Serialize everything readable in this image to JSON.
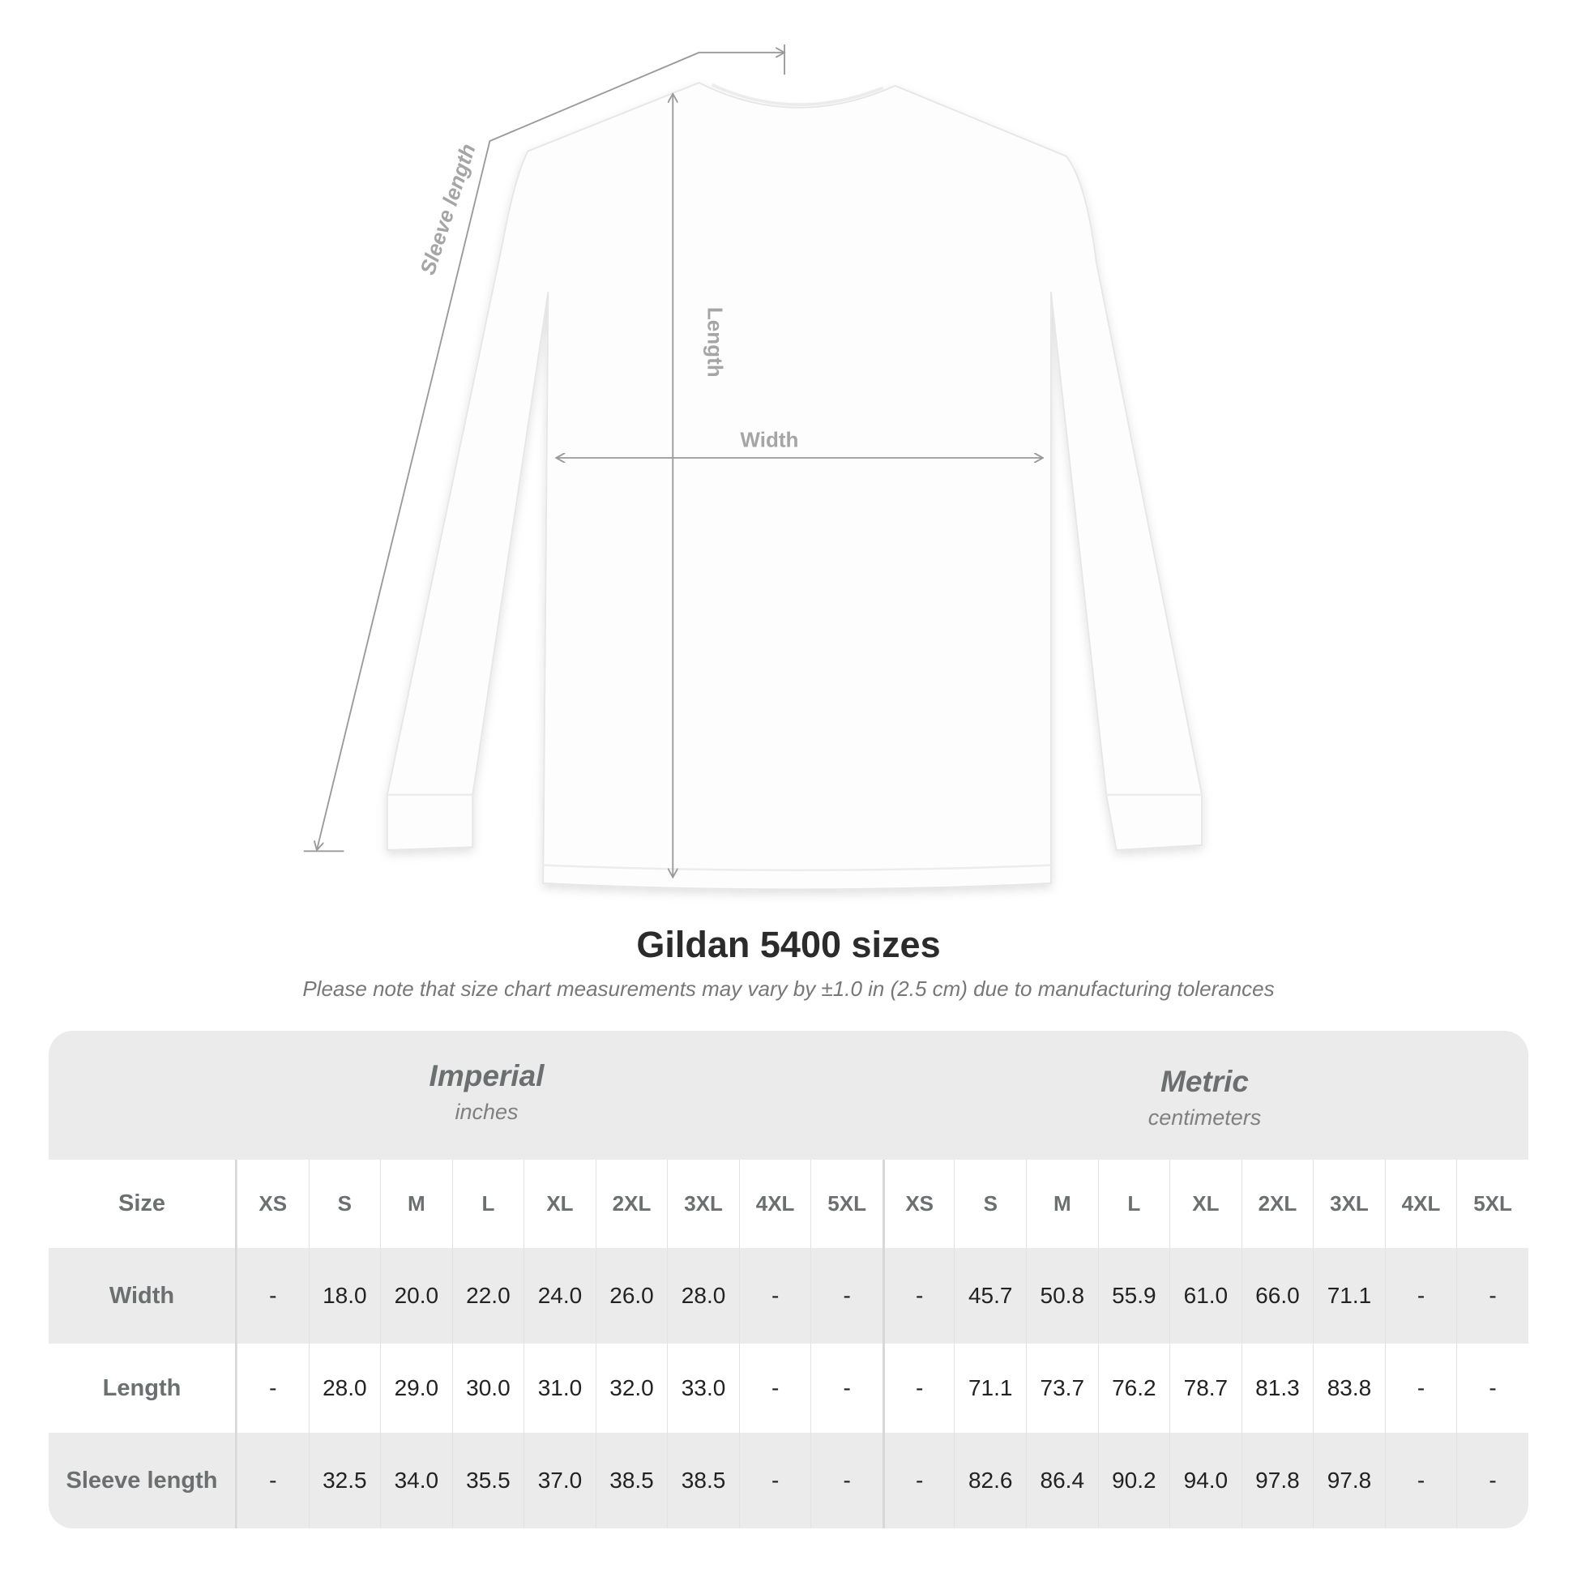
{
  "diagram": {
    "labels": {
      "sleeve_length": "Sleeve length",
      "length": "Length",
      "width": "Width"
    },
    "garment_color": "#ffffff",
    "line_color": "#9a9a9a"
  },
  "title": "Gildan 5400 sizes",
  "note": "Please note that size chart measurements may vary by ±1.0 in (2.5 cm) due to manufacturing tolerances",
  "table": {
    "imperial": {
      "title": "Imperial",
      "unit": "inches"
    },
    "metric": {
      "title": "Metric",
      "unit": "centimeters"
    },
    "size_label": "Size",
    "sizes": [
      "XS",
      "S",
      "M",
      "L",
      "XL",
      "2XL",
      "3XL",
      "4XL",
      "5XL"
    ],
    "rows": [
      {
        "label": "Width",
        "imperial": [
          "-",
          "18.0",
          "20.0",
          "22.0",
          "24.0",
          "26.0",
          "28.0",
          "-",
          "-"
        ],
        "metric": [
          "-",
          "45.7",
          "50.8",
          "55.9",
          "61.0",
          "66.0",
          "71.1",
          "-",
          "-"
        ]
      },
      {
        "label": "Length",
        "imperial": [
          "-",
          "28.0",
          "29.0",
          "30.0",
          "31.0",
          "32.0",
          "33.0",
          "-",
          "-"
        ],
        "metric": [
          "-",
          "71.1",
          "73.7",
          "76.2",
          "78.7",
          "81.3",
          "83.8",
          "-",
          "-"
        ]
      },
      {
        "label": "Sleeve length",
        "imperial": [
          "-",
          "32.5",
          "34.0",
          "35.5",
          "37.0",
          "38.5",
          "38.5",
          "-",
          "-"
        ],
        "metric": [
          "-",
          "82.6",
          "86.4",
          "90.2",
          "94.0",
          "97.8",
          "97.8",
          "-",
          "-"
        ]
      }
    ]
  }
}
